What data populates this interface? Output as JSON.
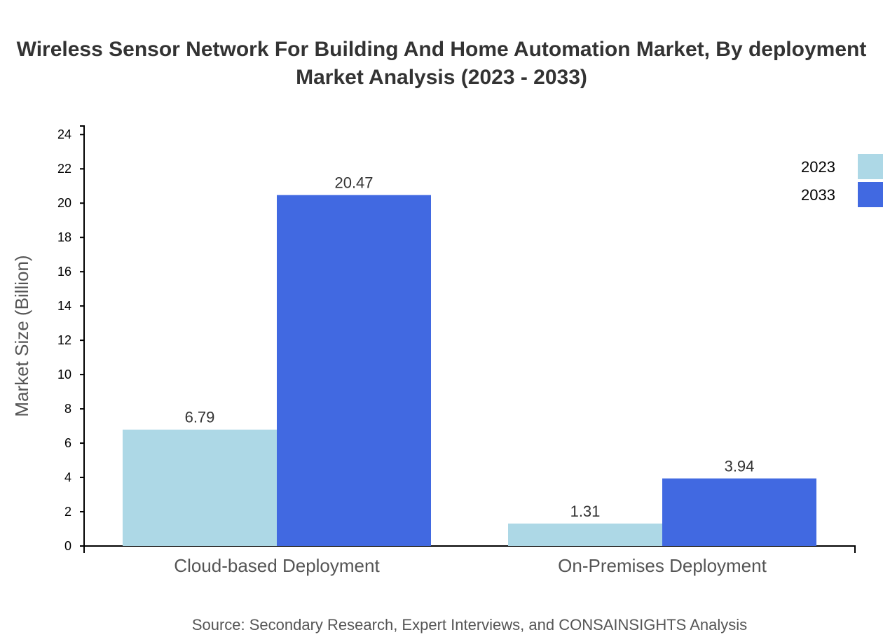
{
  "chart_data": {
    "type": "bar",
    "title_lines": [
      "Wireless Sensor Network For Building And Home Automation Market, By deployment",
      "Market Analysis (2023 - 2033)"
    ],
    "xlabel": "",
    "ylabel": "Market Size (Billion)",
    "categories": [
      "Cloud-based Deployment",
      "On-Premises Deployment"
    ],
    "series": [
      {
        "name": "2023",
        "values": [
          6.79,
          1.31
        ],
        "color": "#add8e6"
      },
      {
        "name": "2033",
        "values": [
          20.47,
          3.94
        ],
        "color": "#4169e1"
      }
    ],
    "ylim": [
      0,
      24.5
    ],
    "yticks": [
      0,
      2,
      4,
      6,
      8,
      10,
      12,
      14,
      16,
      18,
      20,
      22,
      24
    ],
    "grid": false,
    "legend_position": "top-right",
    "source": "Source: Secondary Research, Expert Interviews, and CONSAINSIGHTS Analysis"
  }
}
